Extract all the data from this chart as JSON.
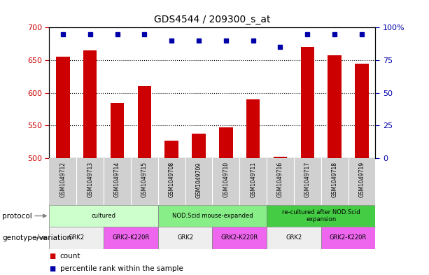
{
  "title": "GDS4544 / 209300_s_at",
  "samples": [
    "GSM1049712",
    "GSM1049713",
    "GSM1049714",
    "GSM1049715",
    "GSM1049708",
    "GSM1049709",
    "GSM1049710",
    "GSM1049711",
    "GSM1049716",
    "GSM1049717",
    "GSM1049718",
    "GSM1049719"
  ],
  "counts": [
    655,
    665,
    585,
    610,
    527,
    537,
    547,
    590,
    502,
    670,
    658,
    645
  ],
  "percentile_ranks": [
    95,
    95,
    95,
    95,
    90,
    90,
    90,
    90,
    85,
    95,
    95,
    95
  ],
  "ymin": 500,
  "ymax": 700,
  "yticks": [
    500,
    550,
    600,
    650,
    700
  ],
  "right_yticks": [
    0,
    25,
    50,
    75,
    100
  ],
  "bar_color": "#cc0000",
  "dot_color": "#0000aa",
  "protocol_row": [
    {
      "label": "cultured",
      "start": 0,
      "end": 4,
      "color": "#ccffcc"
    },
    {
      "label": "NOD.Scid mouse-expanded",
      "start": 4,
      "end": 8,
      "color": "#88ee88"
    },
    {
      "label": "re-cultured after NOD.Scid\nexpansion",
      "start": 8,
      "end": 12,
      "color": "#44cc44"
    }
  ],
  "genotype_row": [
    {
      "label": "GRK2",
      "start": 0,
      "end": 2,
      "color": "#eeeeee"
    },
    {
      "label": "GRK2-K220R",
      "start": 2,
      "end": 4,
      "color": "#ee66ee"
    },
    {
      "label": "GRK2",
      "start": 4,
      "end": 6,
      "color": "#eeeeee"
    },
    {
      "label": "GRK2-K220R",
      "start": 6,
      "end": 8,
      "color": "#ee66ee"
    },
    {
      "label": "GRK2",
      "start": 8,
      "end": 10,
      "color": "#eeeeee"
    },
    {
      "label": "GRK2-K220R",
      "start": 10,
      "end": 12,
      "color": "#ee66ee"
    }
  ],
  "axis_color_left": "#cc0000",
  "axis_color_right": "#0000aa",
  "fig_width": 6.13,
  "fig_height": 3.93,
  "dpi": 100,
  "sample_bg": "#d0d0d0"
}
